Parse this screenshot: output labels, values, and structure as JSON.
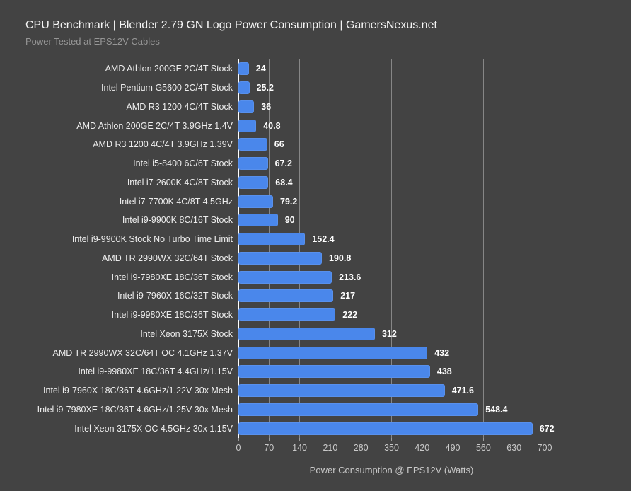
{
  "header": {
    "title": "CPU Benchmark | Blender 2.79 GN Logo Power Consumption | GamersNexus.net",
    "subtitle": "Power Tested at EPS12V Cables"
  },
  "chart_data": {
    "type": "bar",
    "orientation": "horizontal",
    "title": "CPU Benchmark | Blender 2.79 GN Logo Power Consumption | GamersNexus.net",
    "subtitle": "Power Tested at EPS12V Cables",
    "xlabel": "Power Consumption @ EPS12V (Watts)",
    "ylabel": "",
    "xlim": [
      0,
      700
    ],
    "xticks": [
      0,
      70,
      140,
      210,
      280,
      350,
      420,
      490,
      560,
      630,
      700
    ],
    "grid": "vertical gridlines at each 70 W tick, white baseline at 0",
    "legend": "none",
    "categories": [
      "AMD Athlon 200GE 2C/4T Stock",
      "Intel Pentium G5600 2C/4T Stock",
      "AMD R3 1200 4C/4T Stock",
      "AMD Athlon 200GE 2C/4T 3.9GHz 1.4V",
      "AMD R3 1200 4C/4T 3.9GHz 1.39V",
      "Intel i5-8400 6C/6T Stock",
      "Intel i7-2600K 4C/8T Stock",
      "Intel i7-7700K 4C/8T 4.5GHz",
      "Intel i9-9900K 8C/16T Stock",
      "Intel i9-9900K Stock No Turbo Time Limit",
      "AMD TR 2990WX 32C/64T Stock",
      "Intel i9-7980XE 18C/36T Stock",
      "Intel i9-7960X 16C/32T Stock",
      "Intel i9-9980XE 18C/36T Stock",
      "Intel Xeon 3175X Stock",
      "AMD TR 2990WX 32C/64T OC 4.1GHz 1.37V",
      "Intel i9-9980XE 18C/36T 4.4GHz/1.15V",
      "Intel i9-7960X 18C/36T 4.6GHz/1.22V 30x Mesh",
      "Intel i9-7980XE 18C/36T 4.6GHz/1.25V 30x Mesh",
      "Intel Xeon 3175X OC 4.5GHz 30x 1.15V"
    ],
    "values": [
      24,
      25.2,
      36,
      40.8,
      66,
      67.2,
      68.4,
      79.2,
      90,
      152.4,
      190.8,
      213.6,
      217,
      222,
      312,
      432,
      438,
      471.6,
      548.4,
      672
    ]
  },
  "colors": {
    "background": "#434343",
    "bar": "#4a87eb",
    "title_text": "#f5f5f5",
    "subtitle_text": "#969696",
    "category_text": "#ededed",
    "value_text": "#ffffff",
    "gridline": "#868686",
    "axis_line": "#ffffff",
    "tick": "#9a9a9a",
    "tick_text": "#c9c9c9",
    "axis_title_text": "#c9c9c9"
  }
}
